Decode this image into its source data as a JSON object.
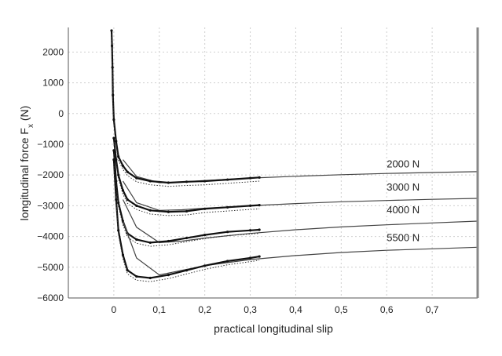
{
  "chart_data": {
    "type": "line",
    "title": "",
    "xlabel": "practical longitudinal slip",
    "ylabel_main": "longitudinal force F",
    "ylabel_sub": "x",
    "ylabel_unit": " (N)",
    "xlim": [
      -0.1,
      0.8
    ],
    "ylim": [
      -6000,
      2800
    ],
    "grid": true,
    "legend": "inline labels at right",
    "x_ticks": [
      {
        "value": 0,
        "label": "0"
      },
      {
        "value": 0.1,
        "label": "0,1"
      },
      {
        "value": 0.2,
        "label": "0,2"
      },
      {
        "value": 0.3,
        "label": "0,3"
      },
      {
        "value": 0.4,
        "label": "0,4"
      },
      {
        "value": 0.5,
        "label": "0,5"
      },
      {
        "value": 0.6,
        "label": "0,6"
      },
      {
        "value": 0.7,
        "label": "0,7"
      }
    ],
    "y_ticks": [
      {
        "value": 2000,
        "label": "2000"
      },
      {
        "value": 1000,
        "label": "1000"
      },
      {
        "value": 0,
        "label": "0"
      },
      {
        "value": -1000,
        "label": "−1000"
      },
      {
        "value": -2000,
        "label": "−2000"
      },
      {
        "value": -3000,
        "label": "−3000"
      },
      {
        "value": -4000,
        "label": "−4000"
      },
      {
        "value": -5000,
        "label": "−5000"
      },
      {
        "value": -6000,
        "label": "−6000"
      }
    ],
    "series": [
      {
        "name": "2000 N",
        "label_at": [
          0.6,
          -1750
        ],
        "model": {
          "x": [
            0.02,
            0.05,
            0.1,
            0.15,
            0.2,
            0.3,
            0.4,
            0.5,
            0.6,
            0.7,
            0.8
          ],
          "y": [
            -1500,
            -2050,
            -2250,
            -2230,
            -2180,
            -2100,
            -2040,
            -1990,
            -1950,
            -1920,
            -1890
          ]
        },
        "measured": {
          "x": [
            -0.005,
            -0.004,
            -0.003,
            -0.002,
            0.0,
            0.005,
            0.01,
            0.02,
            0.03,
            0.05,
            0.08,
            0.12,
            0.16,
            0.2,
            0.25,
            0.3,
            0.32
          ],
          "y": [
            2700,
            2200,
            1500,
            600,
            -200,
            -900,
            -1400,
            -1700,
            -1900,
            -2100,
            -2200,
            -2250,
            -2220,
            -2200,
            -2150,
            -2100,
            -2080
          ]
        }
      },
      {
        "name": "3000 N",
        "label_at": [
          0.6,
          -2500
        ],
        "model": {
          "x": [
            0.02,
            0.05,
            0.1,
            0.15,
            0.2,
            0.3,
            0.4,
            0.5,
            0.6,
            0.7,
            0.8
          ],
          "y": [
            -2200,
            -2900,
            -3150,
            -3130,
            -3080,
            -3000,
            -2930,
            -2870,
            -2830,
            -2790,
            -2760
          ]
        },
        "measured": {
          "x": [
            0.0,
            0.005,
            0.01,
            0.02,
            0.03,
            0.05,
            0.08,
            0.12,
            0.16,
            0.2,
            0.25,
            0.3,
            0.32
          ],
          "y": [
            -800,
            -1500,
            -2000,
            -2500,
            -2800,
            -3000,
            -3150,
            -3200,
            -3180,
            -3100,
            -3050,
            -3000,
            -2980
          ]
        }
      },
      {
        "name": "4000 N",
        "label_at": [
          0.6,
          -3250
        ],
        "model": {
          "x": [
            0.02,
            0.05,
            0.1,
            0.15,
            0.2,
            0.3,
            0.4,
            0.5,
            0.6,
            0.7,
            0.8
          ],
          "y": [
            -2800,
            -3700,
            -4200,
            -4150,
            -4050,
            -3900,
            -3780,
            -3690,
            -3620,
            -3560,
            -3500
          ]
        },
        "measured": {
          "x": [
            0.0,
            0.005,
            0.01,
            0.02,
            0.03,
            0.05,
            0.08,
            0.12,
            0.16,
            0.2,
            0.25,
            0.3,
            0.32
          ],
          "y": [
            -1200,
            -2200,
            -2900,
            -3500,
            -3900,
            -4100,
            -4200,
            -4150,
            -4050,
            -3950,
            -3850,
            -3800,
            -3780
          ]
        }
      },
      {
        "name": "5500 N",
        "label_at": [
          0.6,
          -4150
        ],
        "model": {
          "x": [
            0.02,
            0.05,
            0.1,
            0.15,
            0.2,
            0.3,
            0.4,
            0.5,
            0.6,
            0.7,
            0.8
          ],
          "y": [
            -3500,
            -4700,
            -5250,
            -5100,
            -4950,
            -4750,
            -4620,
            -4520,
            -4450,
            -4400,
            -4350
          ]
        },
        "measured": {
          "x": [
            0.0,
            0.005,
            0.01,
            0.02,
            0.03,
            0.05,
            0.08,
            0.12,
            0.16,
            0.2,
            0.25,
            0.3,
            0.32
          ],
          "y": [
            -1500,
            -2800,
            -3800,
            -4600,
            -5100,
            -5300,
            -5350,
            -5250,
            -5100,
            -4950,
            -4800,
            -4700,
            -4650
          ]
        }
      }
    ]
  }
}
